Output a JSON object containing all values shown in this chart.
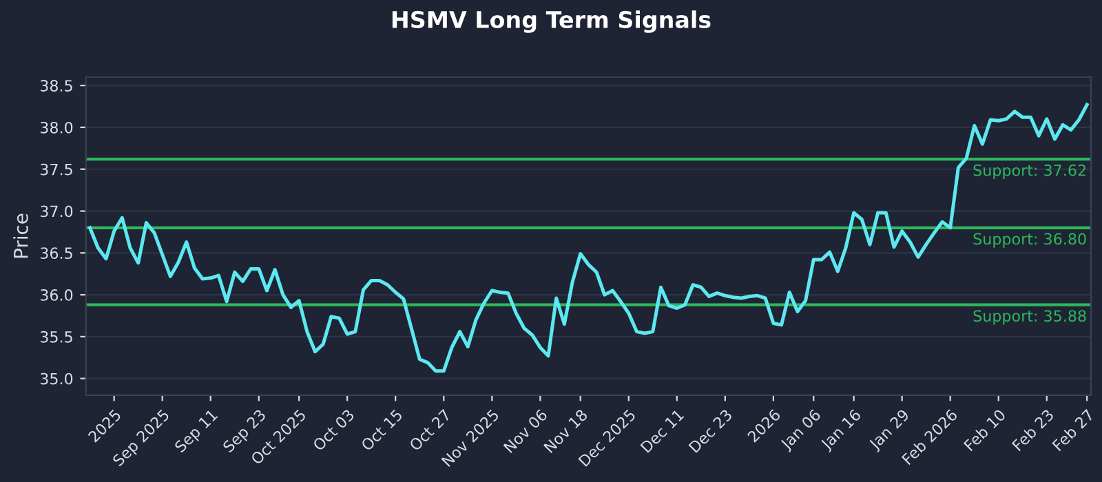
{
  "chart_data": {
    "type": "line",
    "title": "HSMV Long Term Signals",
    "ylabel": "Price",
    "categories": [
      null,
      null,
      null,
      "2025",
      null,
      null,
      null,
      null,
      null,
      "Sep 2025",
      null,
      null,
      null,
      null,
      null,
      "Sep 11",
      null,
      null,
      null,
      null,
      null,
      "Sep 23",
      null,
      null,
      null,
      null,
      "Oct 2025",
      null,
      null,
      null,
      null,
      null,
      "Oct 03",
      null,
      null,
      null,
      null,
      null,
      "Oct 15",
      null,
      null,
      null,
      null,
      null,
      "Oct 27",
      null,
      null,
      null,
      null,
      null,
      "Nov 2025",
      null,
      null,
      null,
      null,
      null,
      "Nov 06",
      null,
      null,
      null,
      null,
      "Nov 18",
      null,
      null,
      null,
      null,
      null,
      "Dec 2025",
      null,
      null,
      null,
      null,
      null,
      "Dec 11",
      null,
      null,
      null,
      null,
      null,
      "Dec 23",
      null,
      null,
      null,
      null,
      null,
      "2026",
      null,
      null,
      null,
      null,
      "Jan 06",
      null,
      null,
      null,
      null,
      "Jan 16",
      null,
      null,
      null,
      null,
      null,
      "Jan 29",
      null,
      null,
      null,
      null,
      null,
      "Feb 2026",
      null,
      null,
      null,
      null,
      null,
      "Feb 10",
      null,
      null,
      null,
      null,
      null,
      "Feb 23",
      null,
      null,
      null,
      null,
      "Feb 27"
    ],
    "series": [
      {
        "color": "#5ce8f0",
        "values": [
          36.8,
          36.56,
          36.43,
          36.76,
          36.92,
          36.56,
          36.38,
          36.86,
          36.74,
          36.48,
          36.22,
          36.39,
          36.63,
          36.32,
          36.19,
          36.2,
          36.23,
          35.92,
          36.27,
          36.16,
          36.31,
          36.31,
          36.05,
          36.3,
          36.0,
          35.85,
          35.93,
          35.56,
          35.32,
          35.41,
          35.74,
          35.72,
          35.53,
          35.56,
          36.06,
          36.17,
          36.17,
          36.12,
          36.03,
          35.95,
          35.59,
          35.23,
          35.19,
          35.09,
          35.09,
          35.37,
          35.56,
          35.38,
          35.7,
          35.9,
          36.05,
          36.03,
          36.02,
          35.78,
          35.6,
          35.52,
          35.37,
          35.27,
          35.96,
          35.65,
          36.15,
          36.49,
          36.36,
          36.27,
          36.0,
          36.05,
          35.92,
          35.78,
          35.56,
          35.54,
          35.56,
          36.09,
          35.87,
          35.84,
          35.88,
          36.12,
          36.09,
          35.98,
          36.02,
          35.99,
          35.97,
          35.96,
          35.98,
          35.99,
          35.96,
          35.66,
          35.64,
          36.03,
          35.8,
          35.93,
          36.42,
          36.42,
          36.51,
          36.28,
          36.56,
          36.98,
          36.9,
          36.6,
          36.98,
          36.98,
          36.57,
          36.76,
          36.63,
          36.45,
          36.6,
          36.74,
          36.87,
          36.8,
          37.52,
          37.63,
          38.02,
          37.8,
          38.09,
          38.08,
          38.1,
          38.19,
          38.12,
          38.12,
          37.9,
          38.1,
          37.86,
          38.03,
          37.97,
          38.09,
          38.27
        ]
      }
    ],
    "ylim": [
      34.8,
      38.6
    ],
    "yticks": [
      {
        "value": 35.0,
        "label": "35.0"
      },
      {
        "value": 35.5,
        "label": "35.5"
      },
      {
        "value": 36.0,
        "label": "36.0"
      },
      {
        "value": 36.5,
        "label": "36.5"
      },
      {
        "value": 37.0,
        "label": "37.0"
      },
      {
        "value": 37.5,
        "label": "37.5"
      },
      {
        "value": 38.0,
        "label": "38.0"
      },
      {
        "value": 38.5,
        "label": "38.5"
      }
    ],
    "grid": "y",
    "marker": "none",
    "line_style": "solid",
    "legend": false,
    "ref_lines": [
      {
        "axis": "y",
        "value": 37.62,
        "label": "Support: 37.62",
        "color": "#2eb85c"
      },
      {
        "axis": "y",
        "value": 36.8,
        "label": "Support: 36.80",
        "color": "#2eb85c"
      },
      {
        "axis": "y",
        "value": 35.88,
        "label": "Support: 35.88",
        "color": "#2eb85c"
      }
    ]
  }
}
